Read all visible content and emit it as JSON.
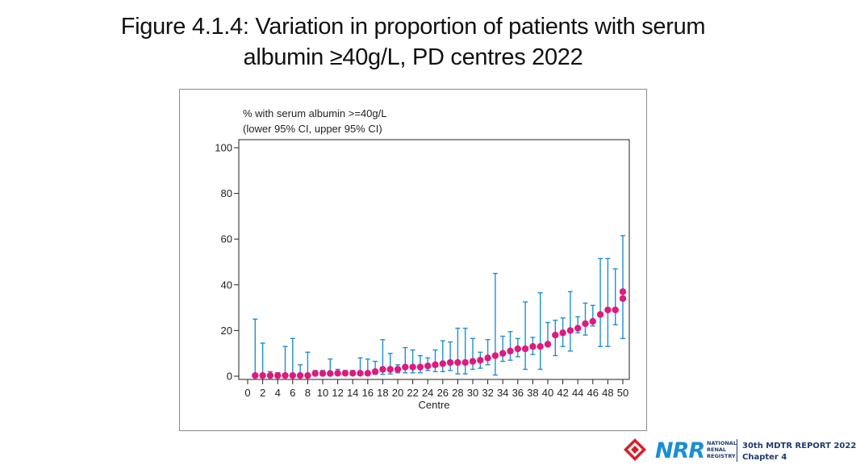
{
  "title": {
    "line1": "Figure 4.1.4: Variation in proportion of patients with serum",
    "line2": "albumin ≥40g/L, PD centres 2022"
  },
  "footer": {
    "logo_text": "NRR",
    "logo_subtext": [
      "NATIONAL",
      "RENAL",
      "REGISTRY"
    ],
    "report_title": "30th MDTR REPORT 2022",
    "chapter": "Chapter 4"
  },
  "colors": {
    "point": "#e0197d",
    "errorbar": "#1f8fd6",
    "axis": "#222222",
    "logo_blue": "#1b8fd0",
    "logo_red": "#d9202a",
    "navy": "#1b3b6f"
  },
  "chart_data": {
    "type": "scatter",
    "title": "",
    "legend_lines": [
      "% with serum albumin >=40g/L",
      "(lower 95% CI, upper 95% CI)"
    ],
    "xlabel": "Centre",
    "ylabel": "",
    "xlim": [
      0,
      50
    ],
    "ylim": [
      0,
      100
    ],
    "xticks": [
      0,
      2,
      4,
      6,
      8,
      10,
      12,
      14,
      16,
      18,
      20,
      22,
      24,
      26,
      28,
      30,
      32,
      34,
      36,
      38,
      40,
      42,
      44,
      46,
      48,
      50
    ],
    "yticks": [
      0,
      20,
      40,
      60,
      80,
      100
    ],
    "grid": false,
    "x": [
      1,
      2,
      3,
      4,
      5,
      6,
      7,
      8,
      9,
      10,
      11,
      12,
      13,
      14,
      15,
      16,
      17,
      18,
      19,
      20,
      21,
      22,
      23,
      24,
      25,
      26,
      27,
      28,
      29,
      30,
      31,
      32,
      33,
      34,
      35,
      36,
      37,
      38,
      39,
      40,
      41,
      42,
      43,
      44,
      45,
      46,
      47,
      48,
      49,
      50
    ],
    "values": [
      0.3,
      0.3,
      0.3,
      0.3,
      0.3,
      0.3,
      0.3,
      0.3,
      1.2,
      1.2,
      1.2,
      1.3,
      1.3,
      1.3,
      1.3,
      1.3,
      2.0,
      3.0,
      3.0,
      3.0,
      4.0,
      4.0,
      4.0,
      4.5,
      5.0,
      5.5,
      6.0,
      6.0,
      6.0,
      6.5,
      7.0,
      8.0,
      9.0,
      10.0,
      11.0,
      12.0,
      12.0,
      13.0,
      13.0,
      14.0,
      18.0,
      19.0,
      20.0,
      21.0,
      23.0,
      24.0,
      27.0,
      29.0,
      29.0,
      34.0
    ],
    "lower_ci": [
      0,
      0,
      0,
      0,
      0,
      0,
      0,
      0,
      0.5,
      0.5,
      0.5,
      0.5,
      0.5,
      0.5,
      0.5,
      0.5,
      0.8,
      0.8,
      1.0,
      1.5,
      1.5,
      1.5,
      1.5,
      2.5,
      2.0,
      2.0,
      2.5,
      1.0,
      1.0,
      3.0,
      3.5,
      5.0,
      0.5,
      6.5,
      7.0,
      8.5,
      3.0,
      9.5,
      3.0,
      14.5,
      9.0,
      13.0,
      11.0,
      19.0,
      18.0,
      22.0,
      13.0,
      13.0,
      22.5,
      16.5
    ],
    "upper_ci": [
      25.0,
      14.5,
      2.0,
      1.5,
      13.0,
      16.5,
      5.0,
      10.5,
      2.5,
      2.5,
      7.5,
      3.0,
      2.5,
      2.5,
      8.0,
      7.5,
      6.5,
      16.0,
      10.0,
      5.0,
      12.5,
      11.5,
      9.0,
      8.0,
      11.5,
      15.5,
      15.0,
      21.0,
      21.0,
      16.5,
      10.5,
      16.0,
      45.0,
      17.5,
      19.5,
      16.5,
      32.5,
      17.0,
      36.5,
      23.5,
      24.5,
      25.5,
      37.0,
      26.0,
      32.0,
      31.0,
      51.5,
      51.5,
      47.0,
      61.5
    ],
    "extra_point": {
      "x": 50,
      "value": 37.0
    }
  }
}
